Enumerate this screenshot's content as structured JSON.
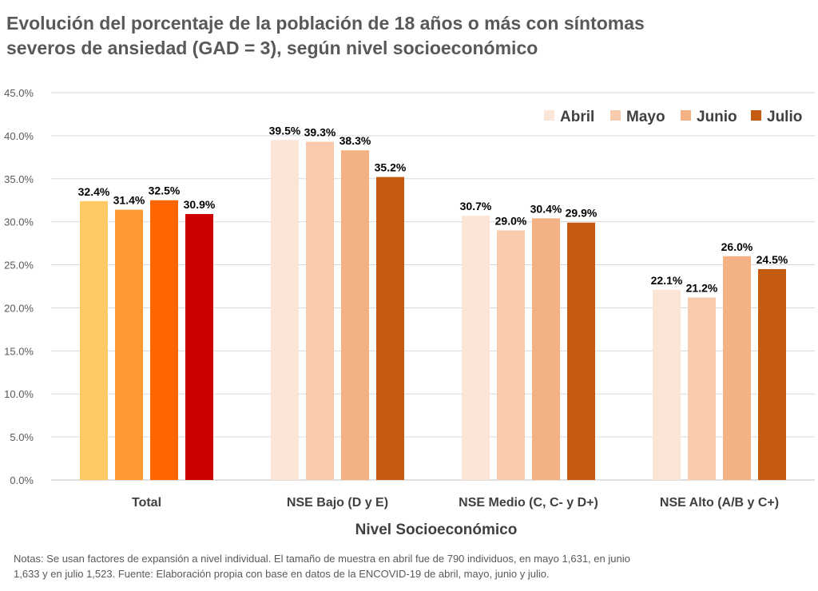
{
  "chart_data": {
    "type": "bar",
    "title_lines": [
      "Evolución del porcentaje de la población de 18 años o más con síntomas",
      "severos de ansiedad (GAD = 3), según nivel socioeconómico"
    ],
    "xlabel": "Nivel Socioeconómico",
    "ylabel": "",
    "ylim": [
      0,
      45
    ],
    "yticks": [
      0,
      5,
      10,
      15,
      20,
      25,
      30,
      35,
      40,
      45
    ],
    "ytick_format": "percent_1_decimal",
    "grid": "horizontal",
    "legend_position": "top-right",
    "categories": [
      "Total",
      "NSE Bajo (D y E)",
      "NSE Medio (C, C- y D+)",
      "NSE Alto (A/B y C+)"
    ],
    "series": [
      {
        "name": "Abril",
        "values": [
          32.4,
          39.5,
          30.7,
          22.1
        ]
      },
      {
        "name": "Mayo",
        "values": [
          31.4,
          39.3,
          29.0,
          21.2
        ]
      },
      {
        "name": "Junio",
        "values": [
          32.5,
          38.3,
          30.4,
          26.0
        ]
      },
      {
        "name": "Julio",
        "values": [
          30.9,
          35.2,
          29.9,
          24.5
        ]
      }
    ],
    "data_labels": [
      [
        "32.4%",
        "39.5%",
        "30.7%",
        "22.1%"
      ],
      [
        "31.4%",
        "39.3%",
        "29.0%",
        "21.2%"
      ],
      [
        "32.5%",
        "38.3%",
        "30.4%",
        "26.0%"
      ],
      [
        "30.9%",
        "35.2%",
        "29.9%",
        "24.5%"
      ]
    ],
    "colors": {
      "total_group": [
        "#FFC966",
        "#FF9933",
        "#FF6600",
        "#CC0000"
      ],
      "series": [
        "#FBE5D6",
        "#F8CBAD",
        "#F4B183",
        "#C55A11"
      ]
    },
    "notes_lines": [
      "Notas: Se usan factores de expansión a nivel individual.  El tamaño de muestra en abril fue de 790 individuos,  en mayo 1,631, en junio",
      "1,633 y en julio 1,523. Fuente: Elaboración propia con base en datos de la ENCOVID-19 de abril, mayo, junio y julio."
    ]
  }
}
